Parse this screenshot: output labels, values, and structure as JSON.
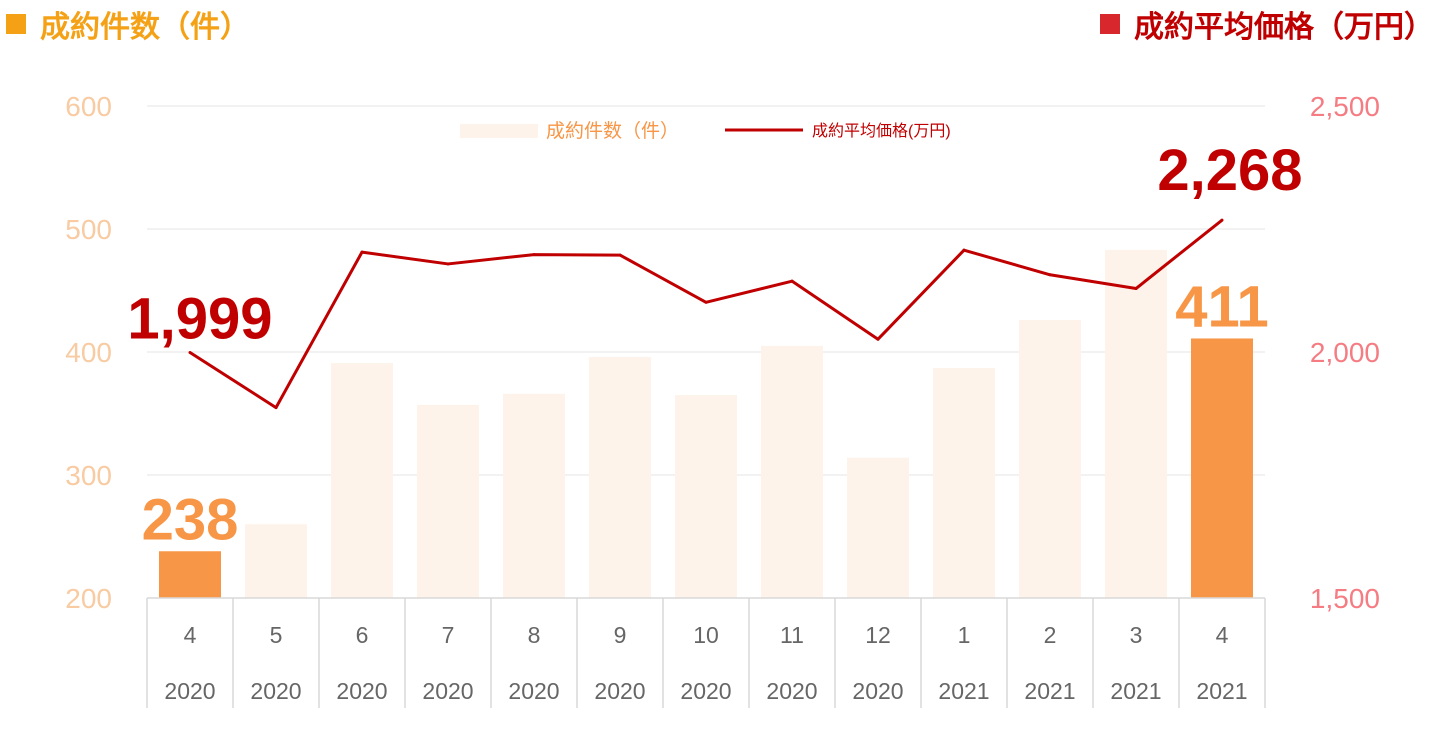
{
  "header": {
    "left_title": "成約件数（件）",
    "right_title": "成約平均価格（万円）",
    "left_color": "#F5A116",
    "right_color": "#C00000"
  },
  "chart_data": {
    "type": "bar+line",
    "categories": [
      "4",
      "5",
      "6",
      "7",
      "8",
      "9",
      "10",
      "11",
      "12",
      "1",
      "2",
      "3",
      "4"
    ],
    "years": [
      "2020",
      "2020",
      "2020",
      "2020",
      "2020",
      "2020",
      "2020",
      "2020",
      "2020",
      "2021",
      "2021",
      "2021",
      "2021"
    ],
    "series": [
      {
        "name": "成約件数（件）",
        "type": "bar",
        "axis": "left",
        "values": [
          238,
          260,
          391,
          357,
          366,
          396,
          365,
          405,
          314,
          387,
          426,
          483,
          411
        ],
        "highlight_indices": [
          0,
          12
        ],
        "color": "#FDF3EA",
        "highlight_color": "#F79646"
      },
      {
        "name": "成約平均価格(万円)",
        "type": "line",
        "axis": "right",
        "values": [
          1999,
          1887,
          2203,
          2179,
          2198,
          2197,
          2101,
          2144,
          2026,
          2207,
          2157,
          2129,
          2268
        ],
        "color": "#C00000"
      }
    ],
    "y_left": {
      "min": 200,
      "max": 600,
      "ticks": [
        "200",
        "300",
        "400",
        "500",
        "600"
      ],
      "color": "#F8CBA2"
    },
    "y_right": {
      "min": 1500,
      "max": 2500,
      "ticks": [
        "1,500",
        "2,000",
        "2,500"
      ],
      "color": "#F47C82"
    },
    "data_labels": [
      {
        "series": 0,
        "index": 0,
        "text": "238",
        "color": "#F79646"
      },
      {
        "series": 0,
        "index": 12,
        "text": "411",
        "color": "#F79646"
      },
      {
        "series": 1,
        "index": 0,
        "text": "1,999",
        "color": "#C00000"
      },
      {
        "series": 1,
        "index": 12,
        "text": "2,268",
        "color": "#C00000"
      }
    ],
    "legend": {
      "placement": "top-center",
      "items": [
        "成約件数（件）",
        "成約平均価格(万円)"
      ]
    },
    "grid": true
  }
}
